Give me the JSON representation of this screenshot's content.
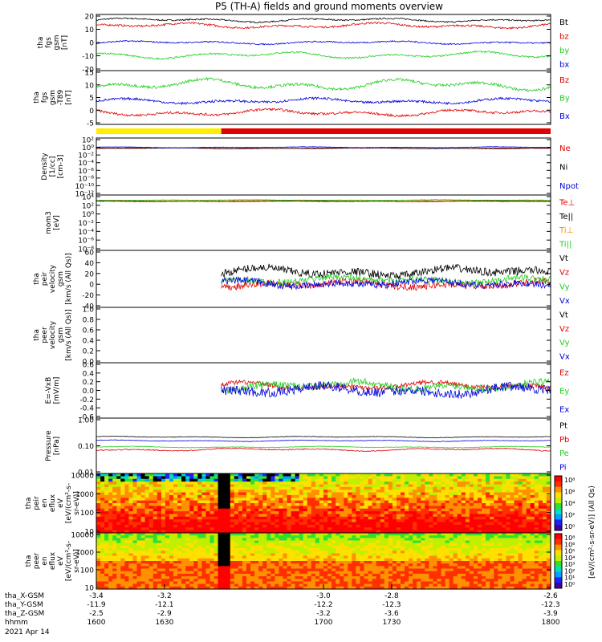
{
  "title": "P5 (TH-A) fields and ground moments overview",
  "colors": {
    "black": "#000000",
    "red": "#e00000",
    "green": "#22cc22",
    "blue": "#0000dd",
    "yellow": "#ffee00"
  },
  "mode_bar": {
    "segments": [
      {
        "t_start": 1600,
        "t_end": 1655,
        "color": "#ffee00"
      },
      {
        "t_start": 1655,
        "t_end": 1800,
        "color": "#e00000"
      }
    ]
  },
  "xaxis": {
    "time_range": [
      1600,
      1800
    ],
    "ticks": [
      1600,
      1630,
      1700,
      1730,
      1800
    ],
    "row_labels": [
      "tha_X-GSM",
      "tha_Y-GSM",
      "tha_Z-GSM",
      "hhmm",
      "2021 Apr 14"
    ],
    "rows": [
      [
        "-3.4",
        "-3.2",
        "-3.0",
        "-2.8",
        "-2.6"
      ],
      [
        "-11.9",
        "-12.1",
        "-12.2",
        "-12.3",
        "-12.3"
      ],
      [
        "-2.5",
        "-2.9",
        "-3.2",
        "-3.6",
        "-3.9"
      ],
      [
        "1600",
        "1630",
        "1700",
        "1730",
        "1800"
      ]
    ]
  },
  "chart_data": [
    {
      "type": "line",
      "ylabel": [
        "tha",
        "fgs",
        "gsm",
        "[nT]"
      ],
      "ylim": [
        -20,
        20
      ],
      "yticks": [
        "20",
        "10",
        "0",
        "-10",
        "-20"
      ],
      "legend": [
        "Bt",
        "bz",
        "by",
        "bx"
      ],
      "series": [
        {
          "name": "Bt",
          "color": "#000000",
          "base": 16,
          "amp": 1.5,
          "noise": 0.5
        },
        {
          "name": "bz",
          "color": "#e00000",
          "base": 12,
          "amp": 2,
          "noise": 0.7
        },
        {
          "name": "by",
          "color": "#22cc22",
          "base": -9,
          "amp": 2.5,
          "noise": 0.6
        },
        {
          "name": "bx",
          "color": "#0000dd",
          "base": 0,
          "amp": 1.2,
          "noise": 0.5
        }
      ]
    },
    {
      "type": "line",
      "ylabel": [
        "tha",
        "fgs",
        "gsm",
        "-T89",
        "[nT]"
      ],
      "ylim": [
        -7,
        16
      ],
      "yticks": [
        "15",
        "10",
        "5",
        "0",
        "-5"
      ],
      "legend": [
        "Bz",
        "By",
        "Bx"
      ],
      "series": [
        {
          "name": "Bz",
          "color": "#e00000",
          "base": -2,
          "amp": 1.5,
          "noise": 0.5
        },
        {
          "name": "By",
          "color": "#22cc22",
          "base": 10,
          "amp": 2.5,
          "noise": 0.6
        },
        {
          "name": "Bx",
          "color": "#0000dd",
          "base": 3,
          "amp": 1.2,
          "noise": 0.5
        }
      ]
    },
    {
      "type": "line",
      "ylabel": [
        "Density",
        "[1/cc]",
        "[cm-3]"
      ],
      "ylim": [
        -13,
        3
      ],
      "log": true,
      "yticks": [
        "10²",
        "10⁰",
        "10⁻²",
        "10⁻⁴",
        "10⁻⁶",
        "10⁻⁸",
        "10⁻¹⁰",
        "10⁻¹²"
      ],
      "legend": [
        "Ne",
        "Ni",
        "Npot"
      ],
      "series": [
        {
          "name": "Ne",
          "color": "#e00000",
          "base": 0.2,
          "amp": 0.15,
          "noise": 0.05
        },
        {
          "name": "Ni",
          "color": "#000000",
          "base": 0.1,
          "amp": 0.15,
          "noise": 0.05
        },
        {
          "name": "Npot",
          "color": "#0000dd",
          "base": 0.4,
          "amp": 0.15,
          "noise": 0.05
        }
      ]
    },
    {
      "type": "line",
      "ylabel": [
        "mom3",
        "[eV]"
      ],
      "ylim": [
        -9,
        4
      ],
      "log": true,
      "yticks": [
        "10⁴",
        "10²",
        "10⁰",
        "10⁻²",
        "10⁻⁴",
        "10⁻⁶",
        "10⁻⁸"
      ],
      "legend": [
        "Te⊥",
        "Te||",
        "Ti⊥",
        "Ti||"
      ],
      "series": [
        {
          "name": "Te⊥",
          "color": "#e00000",
          "base": 2.5,
          "amp": 0.1,
          "noise": 0.05
        },
        {
          "name": "Te||",
          "color": "#000000",
          "base": 2.6,
          "amp": 0.1,
          "noise": 0.05
        },
        {
          "name": "Ti⊥",
          "color": "#ff8800",
          "base": 2.7,
          "amp": 0.1,
          "noise": 0.05
        },
        {
          "name": "Ti||",
          "color": "#22cc22",
          "base": 2.8,
          "amp": 0.1,
          "noise": 0.05
        }
      ]
    },
    {
      "type": "line",
      "ylabel": [
        "tha",
        "peir",
        "velocity",
        "gsm",
        "[km/s (All Qs)]"
      ],
      "ylim": [
        -40,
        60
      ],
      "yticks": [
        "60",
        "40",
        "20",
        "0",
        "-20",
        "-40"
      ],
      "legend": [
        "Vt",
        "Vz",
        "Vy",
        "Vx"
      ],
      "data_start": 1655,
      "series": [
        {
          "name": "Vt",
          "color": "#000000",
          "base": 22,
          "amp": 8,
          "noise": 7
        },
        {
          "name": "Vz",
          "color": "#e00000",
          "base": 0,
          "amp": 6,
          "noise": 6
        },
        {
          "name": "Vy",
          "color": "#22cc22",
          "base": 8,
          "amp": 6,
          "noise": 6
        },
        {
          "name": "Vx",
          "color": "#0000dd",
          "base": 2,
          "amp": 6,
          "noise": 6
        }
      ]
    },
    {
      "type": "line",
      "ylabel": [
        "tha",
        "peer",
        "velocity",
        "gsm",
        "[km/s (All Qs)]"
      ],
      "ylim": [
        0,
        1
      ],
      "yticks": [
        "1.0",
        "0.8",
        "0.6",
        "0.4",
        "0.2",
        "0.0"
      ],
      "legend": [
        "Vt",
        "Vz",
        "Vy",
        "Vx"
      ],
      "series": []
    },
    {
      "type": "line",
      "ylabel": [
        "E=-VxB",
        "[mV/m]"
      ],
      "ylim": [
        -0.6,
        0.6
      ],
      "yticks": [
        "0.6",
        "0.4",
        "0.2",
        "0.0",
        "-0.2",
        "-0.4",
        "-0.6"
      ],
      "legend": [
        "Ez",
        "Ey",
        "Ex"
      ],
      "data_start": 1655,
      "series": [
        {
          "name": "Ez",
          "color": "#e00000",
          "base": 0.1,
          "amp": 0.08,
          "noise": 0.05
        },
        {
          "name": "Ey",
          "color": "#22cc22",
          "base": 0.1,
          "amp": 0.1,
          "noise": 0.08
        },
        {
          "name": "Ex",
          "color": "#0000dd",
          "base": 0.0,
          "amp": 0.1,
          "noise": 0.1
        }
      ]
    },
    {
      "type": "line",
      "ylabel": [
        "Pressure",
        "[nPa]"
      ],
      "ylim": [
        -2,
        0.2
      ],
      "log": true,
      "yticks": [
        "1.00",
        "0.10",
        "0.01"
      ],
      "legend": [
        "Pt",
        "Pb",
        "Pe",
        "Pi"
      ],
      "series": [
        {
          "name": "Pt",
          "color": "#000000",
          "base": -0.55,
          "amp": 0.03,
          "noise": 0.01
        },
        {
          "name": "Pb",
          "color": "#e00000",
          "base": -1.05,
          "amp": 0.06,
          "noise": 0.02
        },
        {
          "name": "Pe",
          "color": "#22cc22",
          "base": -0.95,
          "amp": 0.03,
          "noise": 0.01
        },
        {
          "name": "Pi",
          "color": "#0000dd",
          "base": -0.7,
          "amp": 0.03,
          "noise": 0.01
        }
      ]
    },
    {
      "type": "heatmap",
      "ylabel": [
        "tha",
        "peir",
        "en",
        "eflux",
        "eV",
        "[eV/(cm²-s-",
        "sr-eV)]"
      ],
      "ylim": [
        1,
        4.2
      ],
      "log": true,
      "yticks": [
        "10000",
        "1000",
        "100",
        "10"
      ]
    },
    {
      "type": "heatmap",
      "ylabel": [
        "tha",
        "peer",
        "en",
        "eflux",
        "eV",
        "[eV/(cm²-s-",
        "sr-eV)]"
      ],
      "ylim": [
        0.9,
        4.2
      ],
      "log": true,
      "yticks": [
        "10000",
        "1000",
        "100",
        "10"
      ]
    }
  ],
  "colorbar": {
    "label": "[eV/(cm²-s-sr-eV)] (All Qs)",
    "ticks_top": [
      "10⁸",
      "10⁶",
      "10⁴",
      "10²",
      "10⁰"
    ],
    "ticks_bottom": [
      "10⁸",
      "10⁶",
      "10⁵",
      "10⁴",
      "10³",
      "10²",
      "10¹",
      "10⁰"
    ]
  }
}
